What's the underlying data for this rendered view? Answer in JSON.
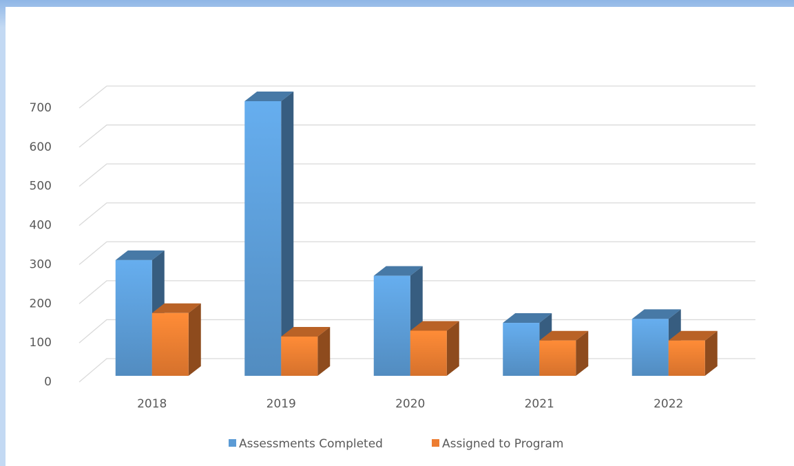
{
  "chart_data": {
    "type": "bar3d",
    "categories": [
      "2018",
      "2019",
      "2020",
      "2021",
      "2022"
    ],
    "series": [
      {
        "name": "Assessments Completed",
        "color": "#5b9bd5",
        "values": [
          295,
          700,
          255,
          135,
          145
        ]
      },
      {
        "name": "Assigned to Program",
        "color": "#ed7d31",
        "values": [
          160,
          100,
          115,
          90,
          90
        ]
      }
    ],
    "ylim": [
      0,
      700
    ],
    "yticks": [
      0,
      100,
      200,
      300,
      400,
      500,
      600,
      700
    ],
    "grid": true,
    "legend": "bottom"
  }
}
